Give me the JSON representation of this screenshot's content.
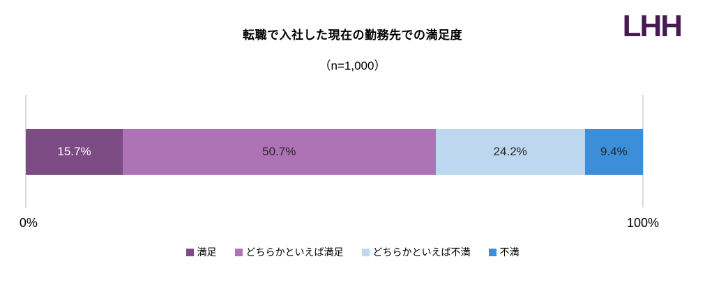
{
  "header": {
    "logo_text": "LHH",
    "logo_color": "#461a52"
  },
  "chart_data": {
    "type": "bar",
    "orientation": "horizontal-stacked",
    "title": "転職で入社した現在の勤務先での満足度",
    "subtitle": "（n=1,000）",
    "sample_size": 1000,
    "unit": "%",
    "categories": [
      "満足",
      "どちらかといえば満足",
      "どちらかといえば不満",
      "不満"
    ],
    "values": [
      15.7,
      50.7,
      24.2,
      9.4
    ],
    "segments": [
      {
        "label": "満足",
        "value": 15.7,
        "display": "15.7%",
        "color": "#7d4b84",
        "text_color": "#ffffff"
      },
      {
        "label": "どちらかといえば満足",
        "value": 50.7,
        "display": "50.7%",
        "color": "#ae73b4",
        "text_color": "#262626"
      },
      {
        "label": "どちらかといえば不満",
        "value": 24.2,
        "display": "24.2%",
        "color": "#bdd7ee",
        "text_color": "#262626"
      },
      {
        "label": "不満",
        "value": 9.4,
        "display": "9.4%",
        "color": "#3d8ed8",
        "text_color": "#262626"
      }
    ],
    "x_axis": {
      "range": [
        0,
        100
      ],
      "ticks": [
        "0%",
        "100%"
      ]
    },
    "legend": {
      "position": "bottom",
      "items": [
        "満足",
        "どちらかといえば満足",
        "どちらかといえば不満",
        "不満"
      ]
    },
    "grid": "vertical lines at 0% and 100% only",
    "gridline_color": "#d9d9d9"
  }
}
